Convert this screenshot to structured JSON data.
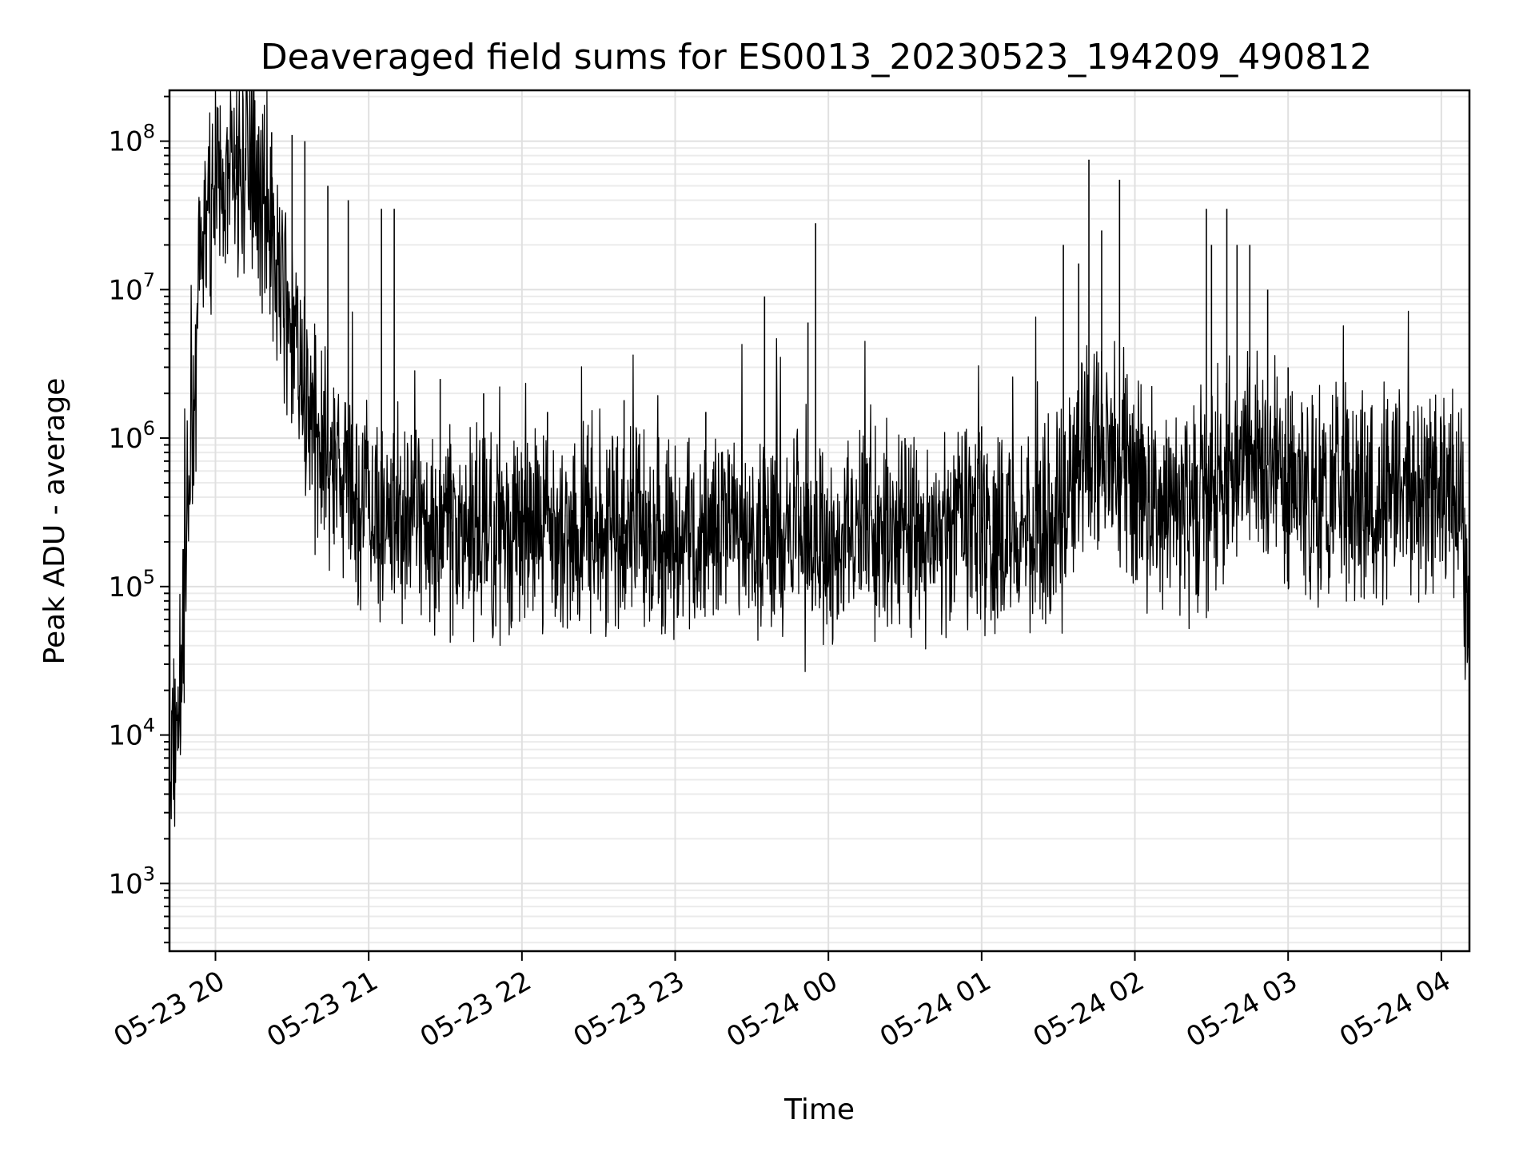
{
  "chart_data": {
    "type": "line",
    "title": "Deaveraged field sums for ES0013_20230523_194209_490812",
    "xlabel": "Time",
    "ylabel": "Peak ADU - average",
    "yscale": "log",
    "ylim": [
      350,
      220000000
    ],
    "xlim": [
      "2023-05-23 19:42",
      "2023-05-24 04:11"
    ],
    "grid": true,
    "y_ticks": [
      {
        "base": "10",
        "exp": "3",
        "value": 1000
      },
      {
        "base": "10",
        "exp": "4",
        "value": 10000
      },
      {
        "base": "10",
        "exp": "5",
        "value": 100000
      },
      {
        "base": "10",
        "exp": "6",
        "value": 1000000
      },
      {
        "base": "10",
        "exp": "7",
        "value": 10000000
      },
      {
        "base": "10",
        "exp": "8",
        "value": 100000000
      }
    ],
    "x_ticks": [
      {
        "label": "05-23 20",
        "value": "2023-05-23 20:00"
      },
      {
        "label": "05-23 21",
        "value": "2023-05-23 21:00"
      },
      {
        "label": "05-23 22",
        "value": "2023-05-23 22:00"
      },
      {
        "label": "05-23 23",
        "value": "2023-05-23 23:00"
      },
      {
        "label": "05-24 00",
        "value": "2023-05-24 00:00"
      },
      {
        "label": "05-24 01",
        "value": "2023-05-24 01:00"
      },
      {
        "label": "05-24 02",
        "value": "2023-05-24 02:00"
      },
      {
        "label": "05-24 03",
        "value": "2023-05-24 03:00"
      },
      {
        "label": "05-24 04",
        "value": "2023-05-24 04:00"
      }
    ],
    "line_color": "#000000",
    "series": [
      {
        "x": [
          "2023-05-23 19:42",
          "2023-05-23 19:44",
          "2023-05-23 19:46",
          "2023-05-23 19:48",
          "2023-05-23 19:50",
          "2023-05-23 19:52",
          "2023-05-23 19:54",
          "2023-05-23 19:56",
          "2023-05-23 19:58",
          "2023-05-23 20:00",
          "2023-05-23 20:04",
          "2023-05-23 20:08",
          "2023-05-23 20:12",
          "2023-05-23 20:16",
          "2023-05-23 20:20",
          "2023-05-23 20:24",
          "2023-05-23 20:28",
          "2023-05-23 20:32",
          "2023-05-23 20:36",
          "2023-05-23 20:40",
          "2023-05-23 20:44",
          "2023-05-23 20:48",
          "2023-05-23 20:52",
          "2023-05-23 20:56",
          "2023-05-23 21:00",
          "2023-05-23 21:05",
          "2023-05-23 21:10",
          "2023-05-23 21:20",
          "2023-05-23 21:30",
          "2023-05-23 21:40",
          "2023-05-23 21:50",
          "2023-05-23 22:00",
          "2023-05-23 22:15",
          "2023-05-23 22:30",
          "2023-05-23 22:45",
          "2023-05-23 23:00",
          "2023-05-23 23:15",
          "2023-05-23 23:30",
          "2023-05-23 23:45",
          "2023-05-24 00:00",
          "2023-05-24 00:15",
          "2023-05-24 00:30",
          "2023-05-24 00:45",
          "2023-05-24 01:00",
          "2023-05-24 01:15",
          "2023-05-24 01:30",
          "2023-05-24 01:40",
          "2023-05-24 01:50",
          "2023-05-24 02:00",
          "2023-05-24 02:10",
          "2023-05-24 02:20",
          "2023-05-24 02:30",
          "2023-05-24 02:40",
          "2023-05-24 02:50",
          "2023-05-24 03:00",
          "2023-05-24 03:15",
          "2023-05-24 03:30",
          "2023-05-24 03:45",
          "2023-05-24 04:00",
          "2023-05-24 04:05",
          "2023-05-24 04:08",
          "2023-05-24 04:10"
        ],
        "y": [
          2000,
          8000,
          20000,
          100000,
          500000,
          3000000,
          10000000,
          25000000,
          35000000,
          40000000,
          55000000,
          65000000,
          60000000,
          50000000,
          35000000,
          15000000,
          6000000,
          3000000,
          2000000,
          1200000,
          800000,
          500000,
          400000,
          350000,
          320000,
          300000,
          280000,
          260000,
          240000,
          230000,
          250000,
          240000,
          230000,
          220000,
          230000,
          220000,
          210000,
          220000,
          230000,
          240000,
          250000,
          240000,
          220000,
          230000,
          240000,
          260000,
          800000,
          700000,
          500000,
          350000,
          300000,
          320000,
          900000,
          700000,
          500000,
          450000,
          400000,
          380000,
          400000,
          450000,
          350000,
          60000
        ]
      }
    ],
    "spikes": [
      {
        "x": "2023-05-23 20:02",
        "y": 80000000
      },
      {
        "x": "2023-05-23 20:08",
        "y": 95000000
      },
      {
        "x": "2023-05-23 20:15",
        "y": 110000000
      },
      {
        "x": "2023-05-23 20:22",
        "y": 115000000
      },
      {
        "x": "2023-05-23 20:30",
        "y": 110000000
      },
      {
        "x": "2023-05-23 20:35",
        "y": 100000000
      },
      {
        "x": "2023-05-23 20:44",
        "y": 50000000
      },
      {
        "x": "2023-05-23 20:52",
        "y": 40000000
      },
      {
        "x": "2023-05-23 21:05",
        "y": 35000000
      },
      {
        "x": "2023-05-23 21:10",
        "y": 35000000
      },
      {
        "x": "2023-05-23 21:28",
        "y": 2500000
      },
      {
        "x": "2023-05-23 21:45",
        "y": 2000000
      },
      {
        "x": "2023-05-23 22:10",
        "y": 1500000
      },
      {
        "x": "2023-05-23 22:40",
        "y": 1800000
      },
      {
        "x": "2023-05-23 23:12",
        "y": 1500000
      },
      {
        "x": "2023-05-23 23:35",
        "y": 9000000
      },
      {
        "x": "2023-05-23 23:52",
        "y": 6000000
      },
      {
        "x": "2023-05-23 23:55",
        "y": 28000000
      },
      {
        "x": "2023-05-24 00:30",
        "y": 1000000
      },
      {
        "x": "2023-05-24 01:00",
        "y": 1200000
      },
      {
        "x": "2023-05-24 01:32",
        "y": 20000000
      },
      {
        "x": "2023-05-24 01:38",
        "y": 15000000
      },
      {
        "x": "2023-05-24 01:42",
        "y": 75000000
      },
      {
        "x": "2023-05-24 01:47",
        "y": 25000000
      },
      {
        "x": "2023-05-24 01:54",
        "y": 55000000
      },
      {
        "x": "2023-05-24 02:28",
        "y": 35000000
      },
      {
        "x": "2023-05-24 02:30",
        "y": 20000000
      },
      {
        "x": "2023-05-24 02:36",
        "y": 35000000
      },
      {
        "x": "2023-05-24 02:40",
        "y": 20000000
      },
      {
        "x": "2023-05-24 02:45",
        "y": 20000000
      },
      {
        "x": "2023-05-24 02:52",
        "y": 10000000
      },
      {
        "x": "2023-05-24 03:00",
        "y": 3000000
      },
      {
        "x": "2023-05-24 03:30",
        "y": 1500000
      },
      {
        "x": "2023-05-24 03:55",
        "y": 1000000
      }
    ]
  }
}
